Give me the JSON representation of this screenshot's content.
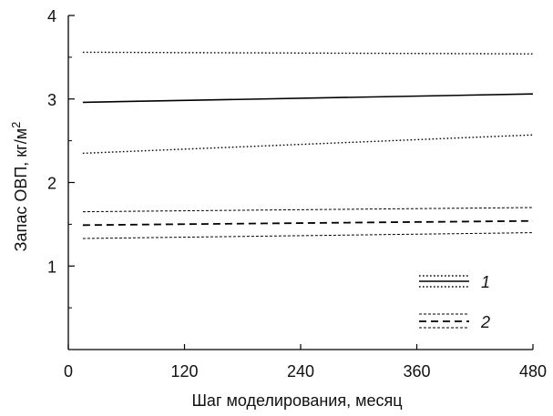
{
  "chart_data": {
    "type": "line",
    "xlabel": "Шаг моделирования, месяц",
    "ylabel": {
      "base": "Запас ОВП, кг/м",
      "superscript": "2"
    },
    "xlim": [
      0,
      480
    ],
    "ylim": [
      0,
      4
    ],
    "xticks": [
      {
        "value": 0,
        "label": "0"
      },
      {
        "value": 120,
        "label": "120"
      },
      {
        "value": 240,
        "label": "240"
      },
      {
        "value": 360,
        "label": "360"
      },
      {
        "value": 480,
        "label": "480"
      }
    ],
    "yticks": [
      {
        "value": 1,
        "label": "1"
      },
      {
        "value": 2,
        "label": "2"
      },
      {
        "value": 3,
        "label": "3"
      },
      {
        "value": 4,
        "label": "4"
      }
    ],
    "yminor": [
      0.5,
      1.5,
      2.5,
      3.5
    ],
    "grid": false,
    "legend": {
      "position": "bottom-right",
      "entries": [
        {
          "label": "1",
          "series": "1"
        },
        {
          "label": "2",
          "series": "2"
        }
      ]
    },
    "series": [
      {
        "group": "1",
        "role": "mean",
        "style": "solid",
        "color": "#000000",
        "x": [
          15,
          480
        ],
        "y": [
          2.96,
          3.06
        ]
      },
      {
        "group": "1",
        "role": "upper",
        "style": "dotted",
        "color": "#000000",
        "x": [
          15,
          480
        ],
        "y": [
          3.56,
          3.54
        ]
      },
      {
        "group": "1",
        "role": "lower",
        "style": "dotted",
        "color": "#000000",
        "x": [
          15,
          480
        ],
        "y": [
          2.35,
          2.57
        ]
      },
      {
        "group": "2",
        "role": "mean",
        "style": "dashed",
        "color": "#000000",
        "x": [
          15,
          480
        ],
        "y": [
          1.49,
          1.54
        ]
      },
      {
        "group": "2",
        "role": "upper",
        "style": "short-dashed",
        "color": "#000000",
        "x": [
          15,
          480
        ],
        "y": [
          1.65,
          1.7
        ]
      },
      {
        "group": "2",
        "role": "lower",
        "style": "short-dashed",
        "color": "#000000",
        "x": [
          15,
          480
        ],
        "y": [
          1.33,
          1.4
        ]
      }
    ]
  }
}
